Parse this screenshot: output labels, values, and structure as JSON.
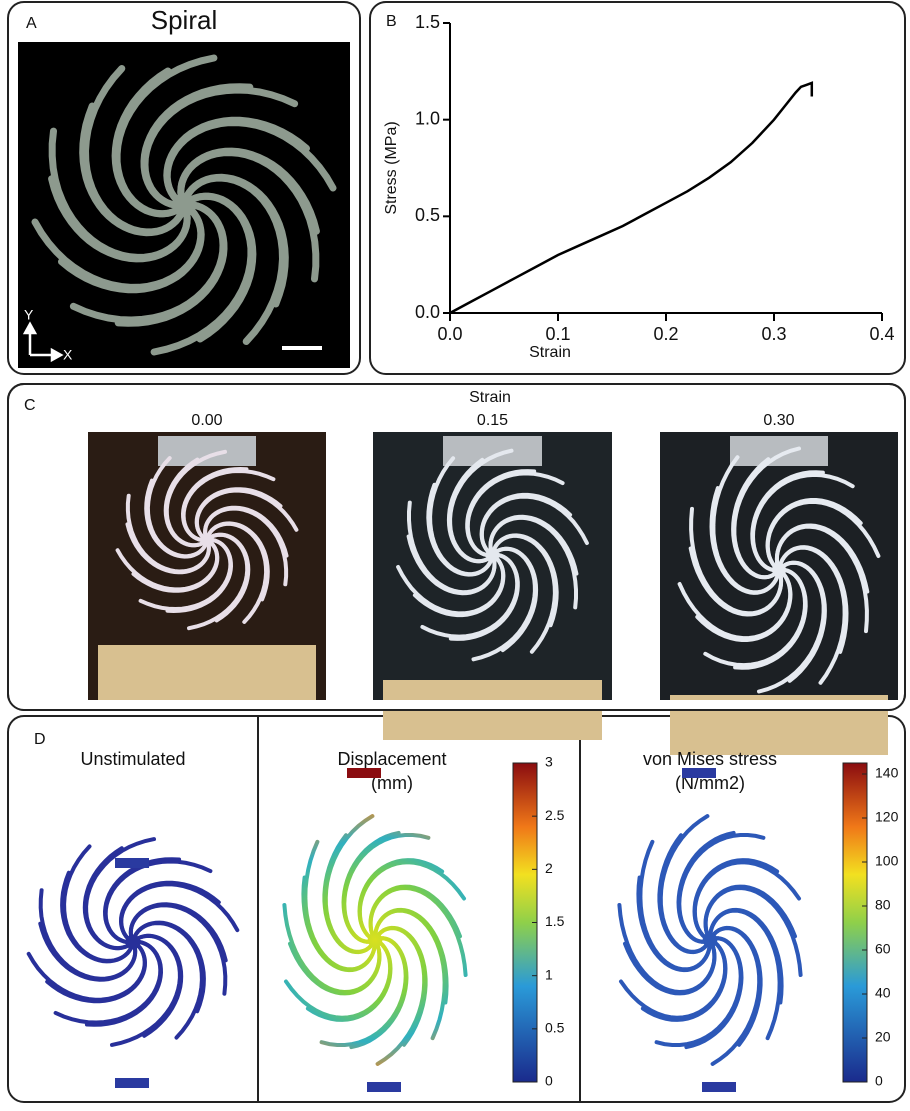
{
  "panel_a": {
    "label": "A",
    "title": "Spiral",
    "axis_y": "Y",
    "axis_x": "X"
  },
  "chart_data": {
    "type": "line",
    "label": "B",
    "xlabel": "Strain",
    "ylabel": "Stress (MPa)",
    "x": [
      0,
      0.02,
      0.04,
      0.06,
      0.08,
      0.1,
      0.12,
      0.14,
      0.16,
      0.18,
      0.2,
      0.22,
      0.24,
      0.26,
      0.28,
      0.3,
      0.31,
      0.32,
      0.325,
      0.33,
      0.335,
      0.335
    ],
    "series": [
      {
        "color": "#000000",
        "values": [
          0,
          0.06,
          0.12,
          0.18,
          0.24,
          0.3,
          0.35,
          0.4,
          0.45,
          0.51,
          0.57,
          0.63,
          0.7,
          0.78,
          0.88,
          1.0,
          1.07,
          1.14,
          1.17,
          1.18,
          1.19,
          1.12
        ]
      }
    ],
    "xlim": [
      0,
      0.4
    ],
    "ylim": [
      0,
      1.5
    ],
    "xticks": [
      {
        "value": 0,
        "label": "0.0"
      },
      0.1,
      0.2,
      0.3,
      0.4
    ],
    "yticks": [
      {
        "value": 0,
        "label": "0.0"
      },
      0.5,
      {
        "value": 1,
        "label": "1.0"
      },
      1.5
    ]
  },
  "panel_c": {
    "label": "C",
    "title": "Strain",
    "strains": [
      "0.00",
      "0.15",
      "0.30"
    ]
  },
  "panel_d": {
    "label": "D",
    "views": [
      {
        "title": "Unstimulated"
      },
      {
        "title": "Displacement",
        "unit": "(mm)",
        "lim": [
          0,
          3
        ],
        "ticks": [
          0,
          0.5,
          1,
          1.5,
          2,
          2.5,
          3
        ]
      },
      {
        "title": "von Mises stress",
        "unit": "(N/mm2)",
        "lim": [
          0,
          145
        ],
        "ticks": [
          0,
          20,
          40,
          60,
          80,
          100,
          120,
          140
        ]
      }
    ]
  }
}
